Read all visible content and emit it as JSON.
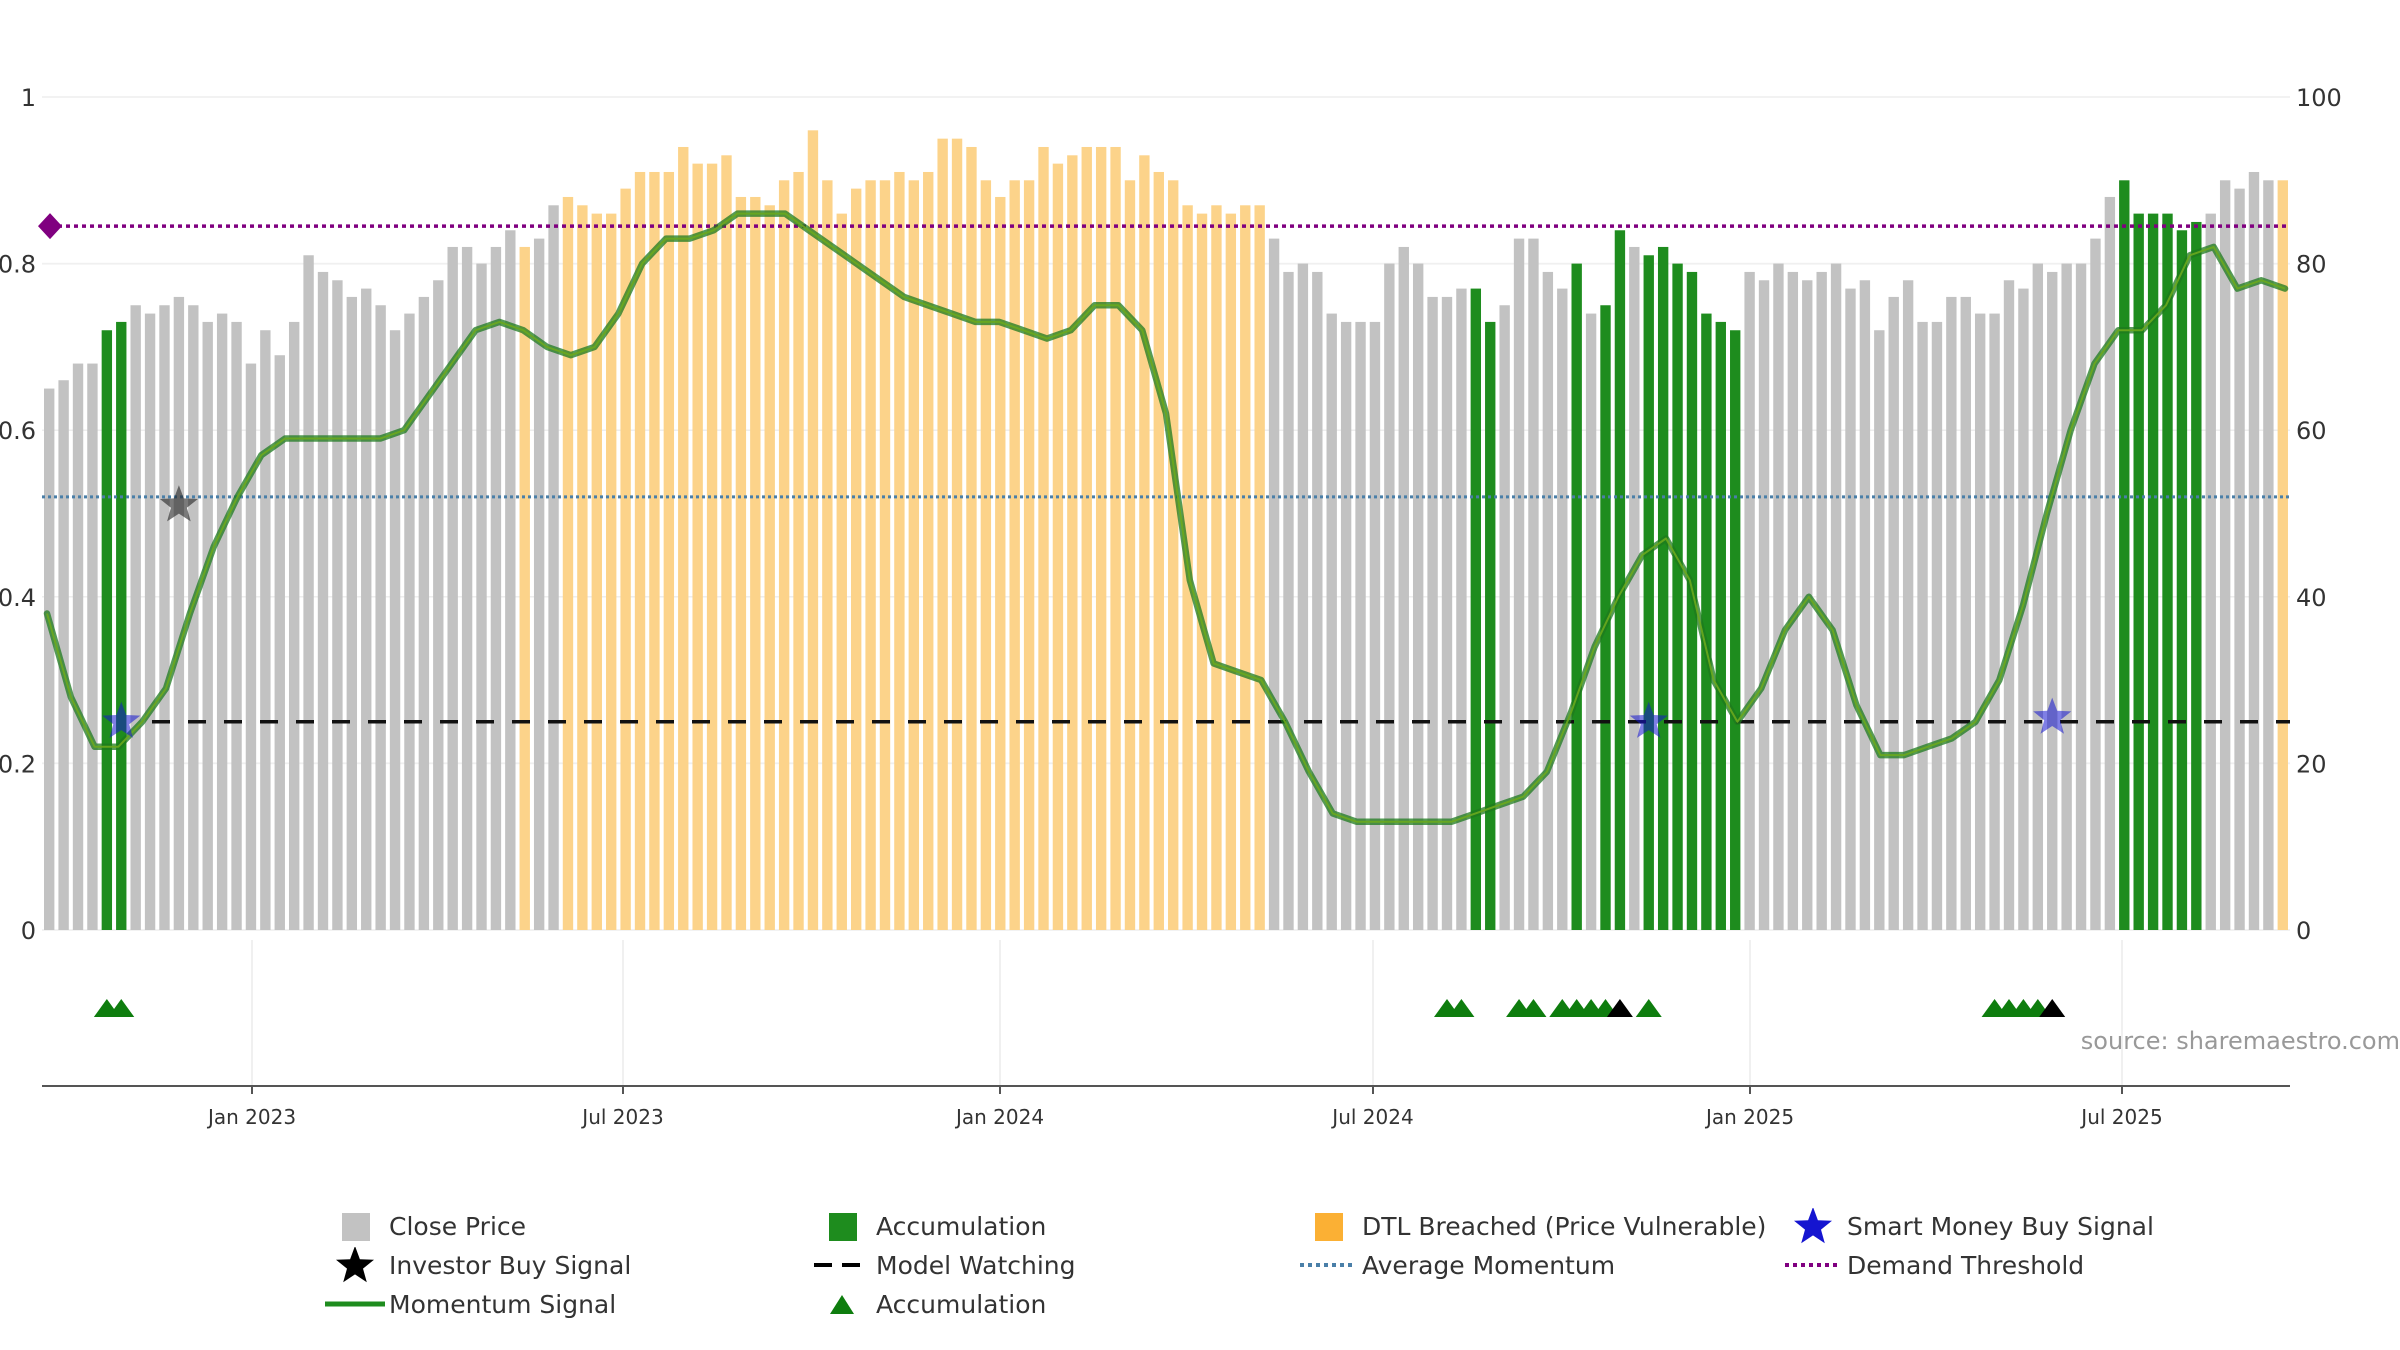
{
  "chart_data": {
    "type": "bar",
    "source_label": "source: sharemaestro.com",
    "left_axis": {
      "ylim": [
        0,
        1
      ],
      "ticks": [
        "0",
        "0.2",
        "0.4",
        "0.6",
        "0.8",
        "1"
      ]
    },
    "right_axis": {
      "ylim": [
        0,
        100
      ],
      "ticks": [
        "0",
        "20",
        "40",
        "60",
        "80",
        "100"
      ]
    },
    "x_axis": {
      "ticks": [
        "Jan 2023",
        "Jul 2023",
        "Jan 2024",
        "Jul 2024",
        "Jan 2025",
        "Jul 2025"
      ]
    },
    "grid": true,
    "legend_position": "bottom",
    "colors": {
      "close": "#c2c2c2",
      "accumulation": "#1e8c1e",
      "dtl": "#fcd38a",
      "momentum": "#2e8b2e",
      "smart_money": "#1515d0",
      "investor": "#000000",
      "model_watching": "#000000",
      "avg_momentum": "#4a7fa8",
      "demand": "#800080",
      "accum_marker": "#0e7d0e"
    },
    "bars": {
      "values": [
        0.65,
        0.66,
        0.68,
        0.68,
        0.72,
        0.73,
        0.75,
        0.74,
        0.75,
        0.76,
        0.75,
        0.73,
        0.74,
        0.73,
        0.68,
        0.72,
        0.69,
        0.73,
        0.81,
        0.79,
        0.78,
        0.76,
        0.77,
        0.75,
        0.72,
        0.74,
        0.76,
        0.78,
        0.82,
        0.82,
        0.8,
        0.82,
        0.84,
        0.82,
        0.83,
        0.87,
        0.88,
        0.87,
        0.86,
        0.86,
        0.89,
        0.91,
        0.91,
        0.91,
        0.94,
        0.92,
        0.92,
        0.93,
        0.88,
        0.88,
        0.87,
        0.9,
        0.91,
        0.96,
        0.9,
        0.86,
        0.89,
        0.9,
        0.9,
        0.91,
        0.9,
        0.91,
        0.95,
        0.95,
        0.94,
        0.9,
        0.88,
        0.9,
        0.9,
        0.94,
        0.92,
        0.93,
        0.94,
        0.94,
        0.94,
        0.9,
        0.93,
        0.91,
        0.9,
        0.87,
        0.86,
        0.87,
        0.86,
        0.87,
        0.87,
        0.83,
        0.79,
        0.8,
        0.79,
        0.74,
        0.73,
        0.73,
        0.73,
        0.8,
        0.82,
        0.8,
        0.76,
        0.76,
        0.77,
        0.77,
        0.73,
        0.75,
        0.83,
        0.83,
        0.79,
        0.77,
        0.8,
        0.74,
        0.75,
        0.84,
        0.82,
        0.81,
        0.82,
        0.8,
        0.79,
        0.74,
        0.73,
        0.72,
        0.79,
        0.78,
        0.8,
        0.79,
        0.78,
        0.79,
        0.8,
        0.77,
        0.78,
        0.72,
        0.76,
        0.78,
        0.73,
        0.73,
        0.76,
        0.76,
        0.74,
        0.74,
        0.78,
        0.77,
        0.8,
        0.79,
        0.8,
        0.8,
        0.83,
        0.88,
        0.9,
        0.86,
        0.86,
        0.86,
        0.84,
        0.85,
        0.86,
        0.9,
        0.89,
        0.91,
        0.9,
        0.9
      ],
      "types": "CCCCAACCCCCCCCCCCCCCCCCCCCCCCCCCCDCCDDDDDDDDDDDDDDDDDDDDDDDDDDDDDDDDDDDDDDDDDDDDDDDDDCCCCCCCCCCCCCCAACCCCCACAACAAAAAAACCCCCCCCCCCCCCCCCCCCCCCCCCAAAAAACCCCCDDDDDDDDDDDDD"
    },
    "momentum": [
      0.38,
      0.28,
      0.22,
      0.22,
      0.25,
      0.29,
      0.38,
      0.46,
      0.52,
      0.57,
      0.59,
      0.59,
      0.59,
      0.59,
      0.59,
      0.6,
      0.64,
      0.68,
      0.72,
      0.73,
      0.72,
      0.7,
      0.69,
      0.7,
      0.74,
      0.8,
      0.83,
      0.83,
      0.84,
      0.86,
      0.86,
      0.86,
      0.84,
      0.82,
      0.8,
      0.78,
      0.76,
      0.75,
      0.74,
      0.73,
      0.73,
      0.72,
      0.71,
      0.72,
      0.75,
      0.75,
      0.72,
      0.62,
      0.42,
      0.32,
      0.31,
      0.3,
      0.25,
      0.19,
      0.14,
      0.13,
      0.13,
      0.13,
      0.13,
      0.13,
      0.14,
      0.15,
      0.16,
      0.19,
      0.26,
      0.34,
      0.4,
      0.45,
      0.47,
      0.42,
      0.3,
      0.25,
      0.29,
      0.36,
      0.4,
      0.36,
      0.27,
      0.21,
      0.21,
      0.22,
      0.23,
      0.25,
      0.3,
      0.39,
      0.5,
      0.6,
      0.68,
      0.72,
      0.72,
      0.75,
      0.81,
      0.82,
      0.77,
      0.78,
      0.77
    ],
    "model_watching_level": 0.25,
    "average_momentum_level": 0.52,
    "demand_threshold_level": 0.845,
    "smart_money_signals": [
      {
        "bar": 5,
        "value": 0.25
      },
      {
        "bar": 111,
        "value": 0.25
      },
      {
        "bar": 139,
        "value": 0.255
      }
    ],
    "investor_signals": [
      {
        "bar": 9,
        "value": 0.51
      }
    ],
    "accumulation_markers": [
      4,
      5,
      97,
      98,
      102,
      103,
      105,
      106,
      107,
      108,
      111,
      135,
      136,
      137,
      138
    ],
    "investor_markers": [
      109,
      139
    ],
    "legend": [
      {
        "label": "Close Price",
        "symbol": "square",
        "color": "#c2c2c2"
      },
      {
        "label": "Accumulation",
        "symbol": "square",
        "color": "#1e8c1e"
      },
      {
        "label": "DTL Breached (Price Vulnerable)",
        "symbol": "square",
        "color": "#fbb034"
      },
      {
        "label": "Smart Money Buy Signal",
        "symbol": "star",
        "color": "#1515d0"
      },
      {
        "label": "Investor Buy Signal",
        "symbol": "star",
        "color": "#000000"
      },
      {
        "label": "Model Watching",
        "symbol": "dash",
        "color": "#000000"
      },
      {
        "label": "Average Momentum",
        "symbol": "dot",
        "color": "#4a7fa8"
      },
      {
        "label": "Demand Threshold",
        "symbol": "dot",
        "color": "#800080"
      },
      {
        "label": "Momentum Signal",
        "symbol": "line",
        "color": "#1e8c1e"
      },
      {
        "label": "Accumulation",
        "symbol": "triangle",
        "color": "#0e7d0e"
      }
    ]
  }
}
